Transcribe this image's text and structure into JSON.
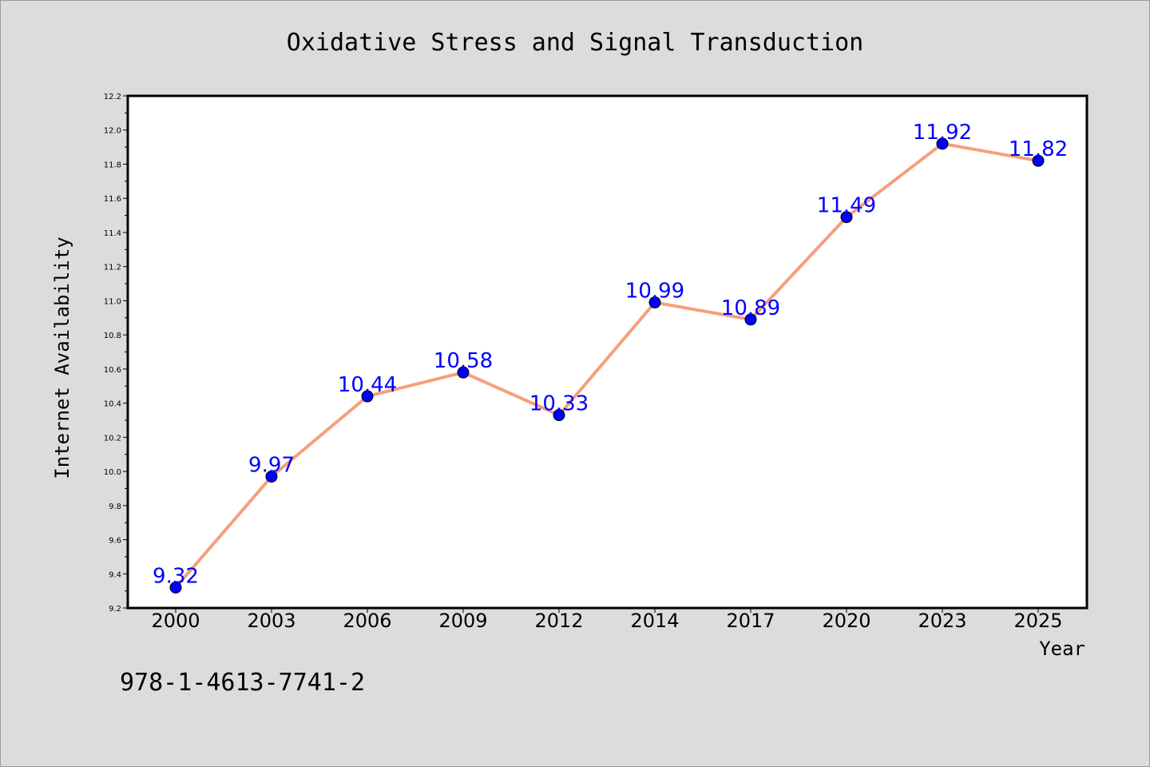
{
  "chart_data": {
    "type": "line",
    "title": "Oxidative Stress and Signal Transduction",
    "xlabel": "Year",
    "ylabel": "Internet Availability",
    "categories": [
      "2000",
      "2003",
      "2006",
      "2009",
      "2012",
      "2014",
      "2017",
      "2020",
      "2023",
      "2025"
    ],
    "series": [
      {
        "values": [
          9.32,
          9.97,
          10.44,
          10.58,
          10.33,
          10.99,
          10.89,
          11.49,
          11.92,
          11.82
        ],
        "line_color": "#f4a07c",
        "marker_color": "#0000ff"
      }
    ],
    "data_labels": [
      "9.32",
      "9.97",
      "10.44",
      "10.58",
      "10.33",
      "10.99",
      "10.89",
      "11.49",
      "11.92",
      "11.82"
    ],
    "ylim": [
      9.2,
      12.2
    ],
    "yticks": [
      "9.2",
      "9.4",
      "9.6",
      "9.8",
      "10.0",
      "10.2",
      "10.4",
      "10.6",
      "10.8",
      "11.0",
      "11.2",
      "11.4",
      "11.6",
      "11.8",
      "12.0",
      "12.2"
    ],
    "grid": false,
    "legend": "none",
    "background_color": "#dcdcdc",
    "plot_background_color": "#ffffff"
  },
  "footnote": "978-1-4613-7741-2"
}
